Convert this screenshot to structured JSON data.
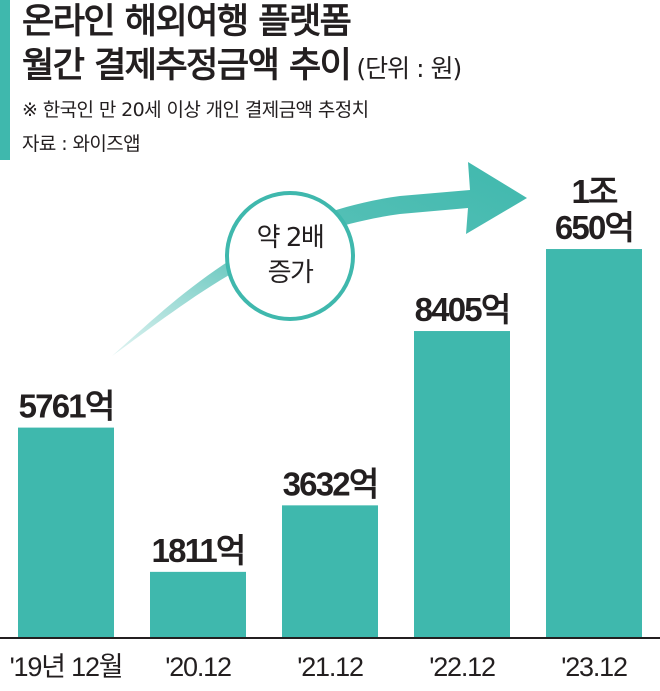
{
  "header": {
    "title_line1": "온라인 해외여행 플랫폼",
    "title_line2": "월간 결제추정금액 추이",
    "unit": "(단위 : 원)",
    "note": "※ 한국인 만 20세 이상 개인 결제금액 추정치",
    "source": "자료 : 와이즈앱"
  },
  "annotation": {
    "line1": "약 2배",
    "line2": "증가"
  },
  "colors": {
    "bar": "#3fb8ad",
    "accent": "#3fb8ad",
    "text": "#231f20"
  },
  "chart_data": {
    "type": "bar",
    "categories": [
      "'19년 12월",
      "'20.12",
      "'21.12",
      "'22.12",
      "'23.12"
    ],
    "values": [
      5761,
      1811,
      3632,
      8405,
      10650
    ],
    "value_labels": [
      [
        "5761억"
      ],
      [
        "1811억"
      ],
      [
        "3632억"
      ],
      [
        "8405억"
      ],
      [
        "1조",
        "650억"
      ]
    ],
    "title": "온라인 해외여행 플랫폼 월간 결제추정금액 추이",
    "ylabel": "",
    "xlabel": "",
    "ylim": [
      0,
      11500
    ],
    "grid": false,
    "legend": "none"
  }
}
